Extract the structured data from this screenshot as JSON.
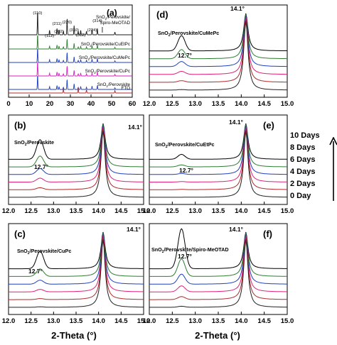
{
  "figure": {
    "x_axis_title": "2-Theta",
    "x_axis_unit": "(°)",
    "legend": {
      "labels": [
        "10 Days",
        "8 Days",
        "6 Days",
        "4 Days",
        "2 Days",
        "0 Day"
      ],
      "arrow_direction": "up"
    }
  },
  "colors": {
    "series": [
      "#000000",
      "#2e7d32",
      "#1f3fbf",
      "#e0207a",
      "#b02a2a",
      "#222222"
    ]
  },
  "chart_data": [
    {
      "type": "line",
      "panel": "(a)",
      "xlabel": "",
      "xlim": [
        0,
        60
      ],
      "x_ticks": [
        0,
        10,
        20,
        30,
        40,
        50,
        60
      ],
      "grid": false,
      "peak_labels": [
        "(110)",
        "(112)",
        "(211)",
        "(202)",
        "(220)",
        "(310)",
        "(312)",
        "(224)",
        "(314)"
      ],
      "series": [
        {
          "name": "SnO2/Perovskite/Spiro-MeOTAD",
          "label_lines": [
            "SnO2/Perovskite/",
            "Spiro-MeOTAD"
          ]
        },
        {
          "name": "SnO2/Perovskite/CuEtPc",
          "label_lines": [
            "SnO2/Perovskite/CuEtPc"
          ]
        },
        {
          "name": "SnO2/Perovskite/CuMePc",
          "label_lines": [
            "SnO2/Perovskite/CuMePc"
          ]
        },
        {
          "name": "SnO2/Perovskite/CuPc",
          "label_lines": [
            "SnO2/Perovskite/CuPc"
          ]
        },
        {
          "name": "SnO2/Perovskite",
          "label_lines": [
            "SnO2/Perovskite"
          ]
        },
        {
          "name": "FTO",
          "label_lines": [
            "FTO"
          ]
        }
      ],
      "peaks_2theta": [
        14.1,
        19.9,
        23.5,
        24.5,
        28.4,
        31.8,
        35.0,
        40.5,
        43.1
      ],
      "fto_peaks_2theta": [
        26.6,
        33.8,
        37.8,
        51.6
      ]
    },
    {
      "type": "line",
      "panel": "(b)",
      "sample": "SnO2/Perovskite",
      "xlim": [
        12.0,
        15.0
      ],
      "x_ticks": [
        "12.0",
        "12.5",
        "13.0",
        "13.5",
        "14.0",
        "14.5",
        "15.0"
      ],
      "annotations": [
        "14.1°",
        "12.7°"
      ],
      "peak_2theta": 14.1,
      "pbi2_2theta": 12.7,
      "series_days": [
        10,
        8,
        6,
        4,
        2,
        0
      ],
      "pbi2_relative_intensity": [
        0.4,
        0.22,
        0.12,
        0.08,
        0.04,
        0.01
      ]
    },
    {
      "type": "line",
      "panel": "(c)",
      "sample": "SnO2/Perovskite/CuPc",
      "xlim": [
        12.0,
        15.0
      ],
      "x_ticks": [
        "12.0",
        "12.5",
        "13.0",
        "13.5",
        "14.0",
        "14.5",
        "15.0"
      ],
      "annotations": [
        "14.1°",
        "12.7°"
      ],
      "peak_2theta": 14.1,
      "pbi2_2theta": 12.7,
      "series_days": [
        10,
        8,
        6,
        4,
        2,
        0
      ],
      "pbi2_relative_intensity": [
        0.35,
        0.15,
        0.08,
        0.05,
        0.02,
        0.01
      ]
    },
    {
      "type": "line",
      "panel": "(d)",
      "sample": "SnO2/Perovskite/CuMePc",
      "xlim": [
        12.0,
        15.0
      ],
      "x_ticks": [
        "12.0",
        "12.5",
        "13.0",
        "13.5",
        "14.0",
        "14.5",
        "15.0"
      ],
      "annotations": [
        "14.1°",
        "12.7°"
      ],
      "peak_2theta": 14.1,
      "pbi2_2theta": 12.7,
      "series_days": [
        10,
        8,
        6,
        4,
        2,
        0
      ],
      "pbi2_relative_intensity": [
        0.3,
        0.18,
        0.1,
        0.06,
        0.03,
        0.01
      ]
    },
    {
      "type": "line",
      "panel": "(e)",
      "sample": "SnO2/Perovskite/CuEtPc",
      "xlim": [
        12.0,
        15.0
      ],
      "x_ticks": [
        "12.0",
        "12.5",
        "13.0",
        "13.5",
        "14.0",
        "14.5",
        "15.0"
      ],
      "annotations": [
        "14.1°",
        "12.7°"
      ],
      "peak_2theta": 14.1,
      "pbi2_2theta": 12.7,
      "series_days": [
        10,
        8,
        6,
        4,
        2,
        0
      ],
      "pbi2_relative_intensity": [
        0.1,
        0.04,
        0.02,
        0.01,
        0.005,
        0.0
      ]
    },
    {
      "type": "line",
      "panel": "(f)",
      "sample": "SnO2/Perovskite/Spiro-MeOTAD",
      "xlim": [
        12.0,
        15.0
      ],
      "x_ticks": [
        "12.0",
        "12.5",
        "13.0",
        "13.5",
        "14.0",
        "14.5",
        "15.0"
      ],
      "annotations": [
        "14.1°",
        "12.7°"
      ],
      "peak_2theta": 14.1,
      "pbi2_2theta": 12.7,
      "series_days": [
        10,
        8,
        6,
        4,
        2,
        0
      ],
      "pbi2_relative_intensity": [
        0.8,
        0.35,
        0.2,
        0.12,
        0.06,
        0.02
      ]
    }
  ]
}
